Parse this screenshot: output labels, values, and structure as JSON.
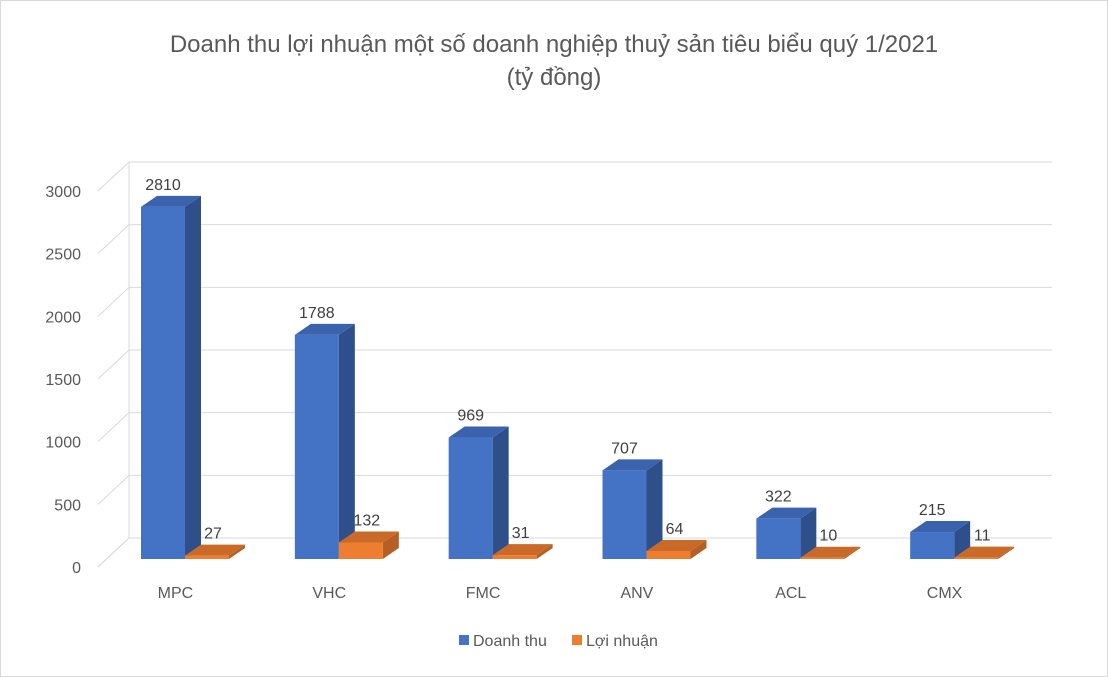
{
  "chart_data": {
    "type": "bar",
    "title": "Doanh thu lợi nhuận một số doanh nghiệp thuỷ sản tiêu biểu quý 1/2021",
    "subtitle": "(tỷ đồng)",
    "categories": [
      "MPC",
      "VHC",
      "FMC",
      "ANV",
      "ACL",
      "CMX"
    ],
    "series": [
      {
        "name": "Doanh thu",
        "values": [
          2810,
          1788,
          969,
          707,
          322,
          215
        ],
        "color": "#4472c4",
        "side_color": "#2f4f8a",
        "top_color": "#3a62ad"
      },
      {
        "name": "Lợi nhuận",
        "values": [
          27,
          132,
          31,
          64,
          10,
          11
        ],
        "color": "#ed7d31",
        "side_color": "#b55f25",
        "top_color": "#c96a28"
      }
    ],
    "y_ticks": [
      "0",
      "500",
      "1000",
      "1500",
      "2000",
      "2500",
      "3000"
    ],
    "ylim": [
      0,
      3000
    ],
    "grid": true,
    "legend_position": "bottom",
    "style": "3d-column"
  }
}
